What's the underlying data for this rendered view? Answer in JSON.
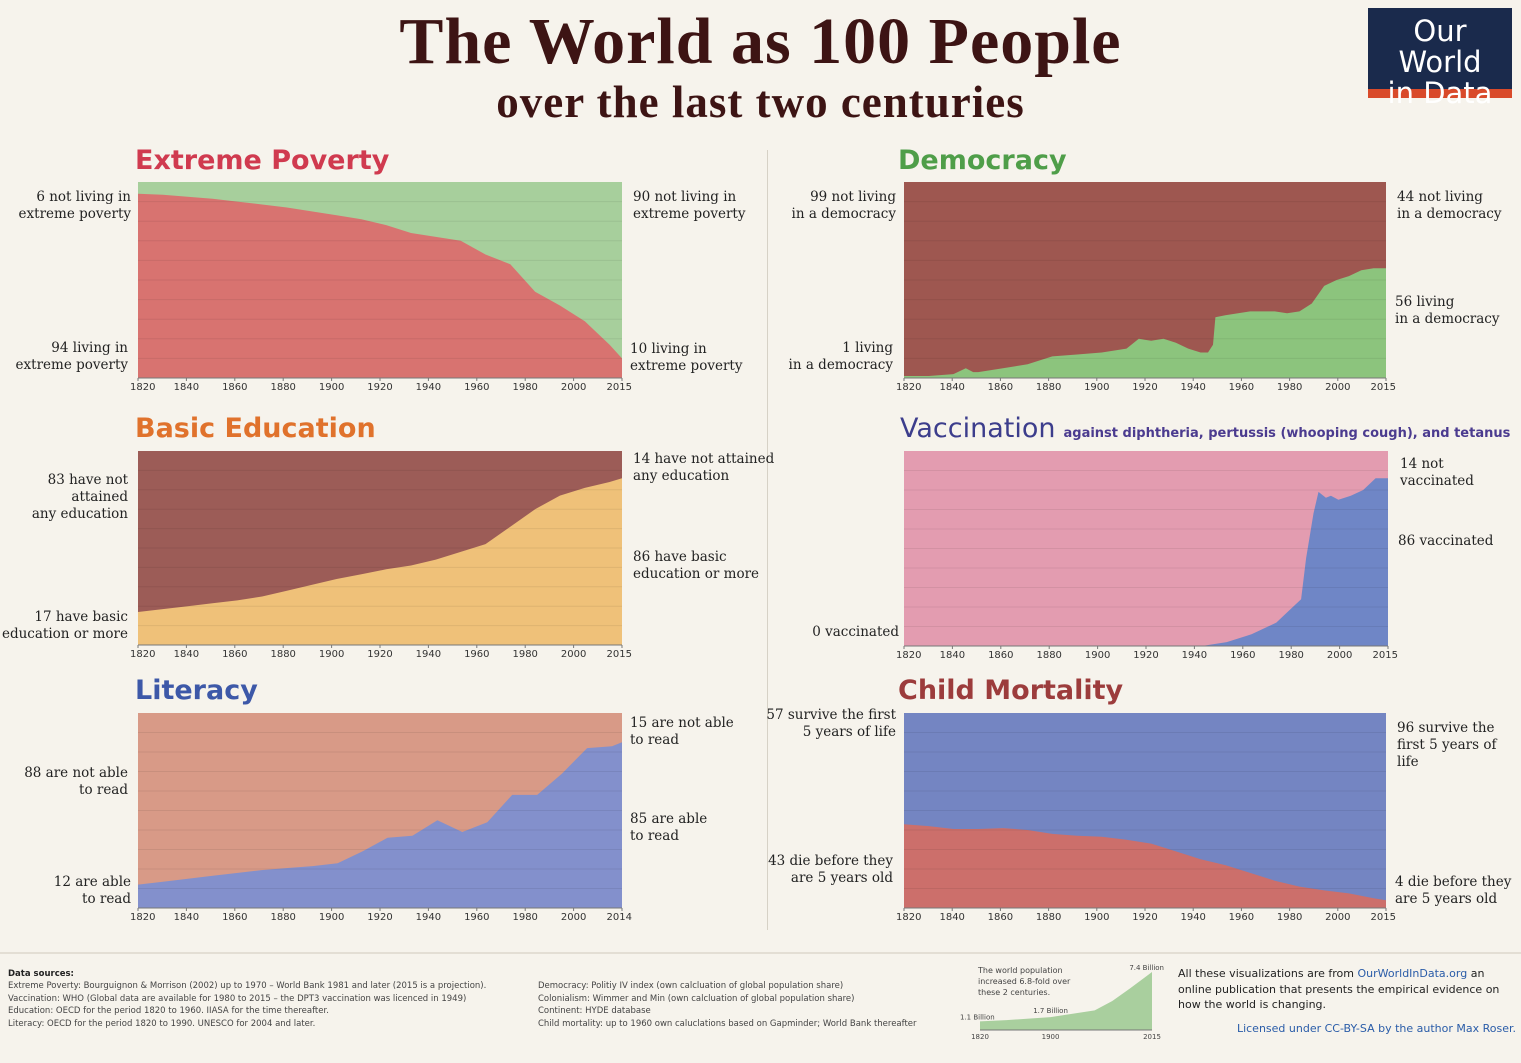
{
  "header": {
    "title": "The World as 100 People",
    "subtitle": "over the last two centuries",
    "logo_line1": "Our World",
    "logo_line2": "in Data"
  },
  "colors": {
    "poverty_title": "#d03a4f",
    "poverty_red": "#d87370",
    "poverty_green": "#a7cf9c",
    "democracy_title": "#4f9e49",
    "democracy_brown": "#9e5750",
    "democracy_green": "#8cc47d",
    "education_title": "#e0722c",
    "education_brown": "#9c5c57",
    "education_yellow": "#efc179",
    "vaccination_title": "#3c3d8c",
    "vaccination_pink": "#e39cb0",
    "vaccination_blue": "#6f86c6",
    "literacy_title": "#3d58a8",
    "literacy_salmon": "#d89a87",
    "literacy_blue": "#8390cc",
    "mortality_title": "#9c3c3c",
    "mortality_blue": "#7485c2",
    "mortality_red": "#cc6f6b"
  },
  "chart_data": [
    {
      "id": "poverty",
      "type": "area",
      "title": "Extreme Poverty",
      "stacked": true,
      "ylim": [
        0,
        100
      ],
      "x_ticks": [
        "1820",
        "1840",
        "1860",
        "1880",
        "1900",
        "1920",
        "1940",
        "1960",
        "1980",
        "2000",
        "2015"
      ],
      "x": [
        1820,
        1830,
        1840,
        1850,
        1860,
        1870,
        1880,
        1890,
        1900,
        1910,
        1920,
        1930,
        1940,
        1950,
        1960,
        1970,
        1980,
        1990,
        2000,
        2010,
        2015
      ],
      "series": [
        {
          "name": "living in extreme poverty",
          "values": [
            94,
            93.5,
            92.5,
            91.5,
            90,
            88.5,
            87,
            85,
            83,
            81,
            78,
            74,
            72,
            70,
            63,
            58,
            44,
            37,
            29,
            17,
            10
          ]
        },
        {
          "name": "not living in extreme poverty",
          "values": [
            6,
            6.5,
            7.5,
            8.5,
            10,
            11.5,
            13,
            15,
            17,
            19,
            22,
            26,
            28,
            30,
            37,
            42,
            56,
            63,
            71,
            83,
            90
          ]
        }
      ],
      "labels": {
        "top_left": "6 not living in\nextreme poverty",
        "bottom_left": "94 living in\nextreme poverty",
        "top_right": "90 not living in\nextreme poverty",
        "bottom_right": "10 living in\nextreme poverty"
      }
    },
    {
      "id": "democracy",
      "type": "area",
      "title": "Democracy",
      "stacked": true,
      "ylim": [
        0,
        100
      ],
      "x_ticks": [
        "1820",
        "1840",
        "1860",
        "1880",
        "1900",
        "1920",
        "1940",
        "1960",
        "1980",
        "2000",
        "2015"
      ],
      "x": [
        1820,
        1830,
        1840,
        1845,
        1848,
        1850,
        1860,
        1870,
        1880,
        1890,
        1900,
        1910,
        1915,
        1920,
        1925,
        1930,
        1935,
        1940,
        1943,
        1945,
        1946,
        1950,
        1960,
        1970,
        1975,
        1980,
        1985,
        1990,
        1995,
        2000,
        2005,
        2010,
        2015
      ],
      "series": [
        {
          "name": "living in a democracy",
          "values": [
            1,
            1,
            2,
            5,
            3,
            3,
            5,
            7,
            11,
            12,
            13,
            15,
            20,
            19,
            20,
            18,
            15,
            13,
            13,
            17,
            31,
            32,
            34,
            34,
            33,
            34,
            38,
            47,
            50,
            52,
            55,
            56,
            56
          ]
        },
        {
          "name": "not living in a democracy",
          "values": [
            99,
            99,
            98,
            95,
            97,
            97,
            95,
            93,
            89,
            88,
            87,
            85,
            80,
            81,
            80,
            82,
            85,
            87,
            87,
            83,
            69,
            68,
            66,
            66,
            67,
            66,
            62,
            53,
            50,
            48,
            45,
            44,
            44
          ]
        }
      ],
      "labels": {
        "top_left": "99 not living\nin a democracy",
        "bottom_left": "1 living\nin a democracy",
        "top_right": "44 not living\nin a democracy",
        "bottom_right": "56 living\nin a democracy"
      }
    },
    {
      "id": "education",
      "type": "area",
      "title": "Basic Education",
      "stacked": true,
      "ylim": [
        0,
        100
      ],
      "x_ticks": [
        "1820",
        "1840",
        "1860",
        "1880",
        "1900",
        "1920",
        "1940",
        "1960",
        "1980",
        "2000",
        "2015"
      ],
      "x": [
        1820,
        1830,
        1840,
        1850,
        1860,
        1870,
        1880,
        1890,
        1900,
        1910,
        1920,
        1930,
        1940,
        1950,
        1960,
        1970,
        1980,
        1990,
        2000,
        2010,
        2015
      ],
      "series": [
        {
          "name": "have basic education or more",
          "values": [
            17,
            18.5,
            20,
            21.5,
            23,
            25,
            28,
            31,
            34,
            36.5,
            39,
            41,
            44,
            48,
            52,
            61,
            70,
            77,
            81,
            84,
            86
          ]
        },
        {
          "name": "have not attained any education",
          "values": [
            83,
            81.5,
            80,
            78.5,
            77,
            75,
            72,
            69,
            66,
            63.5,
            61,
            59,
            56,
            52,
            48,
            39,
            30,
            23,
            19,
            16,
            14
          ]
        }
      ],
      "labels": {
        "top_left": "83 have not attained\nany education",
        "bottom_left": "17 have basic\neducation or more",
        "top_right": "14 have not attained\nany education",
        "bottom_right": "86 have basic\neducation or more"
      }
    },
    {
      "id": "vaccination",
      "type": "area",
      "title": "Vaccination",
      "title_note": "against diphtheria, pertussis (whooping cough), and tetanus",
      "stacked": true,
      "ylim": [
        0,
        100
      ],
      "x_ticks": [
        "1820",
        "1840",
        "1860",
        "1880",
        "1900",
        "1920",
        "1940",
        "1960",
        "1980",
        "2000",
        "2015"
      ],
      "x": [
        1820,
        1940,
        1950,
        1960,
        1970,
        1975,
        1980,
        1982,
        1985,
        1987,
        1990,
        1992,
        1995,
        2000,
        2005,
        2010,
        2015
      ],
      "series": [
        {
          "name": "vaccinated",
          "values": [
            0,
            0,
            2,
            6,
            12,
            18,
            24,
            45,
            68,
            79,
            76,
            77,
            75,
            77,
            80,
            86,
            86
          ]
        },
        {
          "name": "not vaccinated",
          "values": [
            100,
            100,
            98,
            94,
            88,
            82,
            76,
            55,
            32,
            21,
            24,
            23,
            25,
            23,
            20,
            14,
            14
          ]
        }
      ],
      "labels": {
        "top_right": "14 not vaccinated",
        "bottom_left": "0 vaccinated",
        "bottom_right": "86 vaccinated"
      }
    },
    {
      "id": "literacy",
      "type": "area",
      "title": "Literacy",
      "stacked": true,
      "ylim": [
        0,
        100
      ],
      "x_ticks": [
        "1820",
        "1840",
        "1860",
        "1880",
        "1900",
        "1920",
        "1940",
        "1960",
        "1980",
        "2000",
        "2014"
      ],
      "x": [
        1820,
        1830,
        1840,
        1850,
        1860,
        1870,
        1880,
        1890,
        1900,
        1910,
        1920,
        1930,
        1940,
        1950,
        1960,
        1970,
        1980,
        1990,
        2000,
        2010,
        2014
      ],
      "series": [
        {
          "name": "are able to read",
          "values": [
            12,
            13.5,
            15,
            16.5,
            18,
            19.5,
            20.5,
            21.5,
            23,
            29,
            36,
            37,
            45,
            39,
            44,
            58,
            58,
            69,
            82,
            83,
            85
          ]
        },
        {
          "name": "are not able to read",
          "values": [
            88,
            86.5,
            85,
            83.5,
            82,
            80.5,
            79.5,
            78.5,
            77,
            71,
            64,
            63,
            55,
            61,
            56,
            42,
            42,
            31,
            18,
            17,
            15
          ]
        }
      ],
      "labels": {
        "top_left": "88 are not able\nto read",
        "bottom_left": "12 are able\nto read",
        "top_right": "15 are not able\nto read",
        "bottom_right": "85 are able\nto read"
      }
    },
    {
      "id": "mortality",
      "type": "area",
      "title": "Child Mortality",
      "stacked": true,
      "ylim": [
        0,
        100
      ],
      "x_ticks": [
        "1820",
        "1840",
        "1860",
        "1880",
        "1900",
        "1920",
        "1940",
        "1960",
        "1980",
        "2000",
        "2015"
      ],
      "x": [
        1820,
        1830,
        1840,
        1850,
        1860,
        1870,
        1880,
        1890,
        1900,
        1910,
        1920,
        1930,
        1940,
        1950,
        1960,
        1970,
        1980,
        1990,
        2000,
        2010,
        2015
      ],
      "series": [
        {
          "name": "die before they are 5 years old",
          "values": [
            43,
            42,
            40.5,
            40.5,
            41,
            40,
            38,
            37,
            36.5,
            35,
            33,
            29,
            25,
            22,
            18,
            14,
            11,
            9,
            7.5,
            5,
            4
          ]
        },
        {
          "name": "survive the first 5 years of life",
          "values": [
            57,
            58,
            59.5,
            59.5,
            59,
            60,
            62,
            63,
            63.5,
            65,
            67,
            71,
            75,
            78,
            82,
            86,
            89,
            91,
            92.5,
            95,
            96
          ]
        }
      ],
      "labels": {
        "top_left": "57 survive the first\n5 years of life",
        "bottom_left": "43 die before they\nare 5 years old",
        "top_right": "96 survive the\nfirst 5 years of life",
        "bottom_right": "4 die before they\nare 5 years old"
      }
    },
    {
      "id": "population",
      "type": "area",
      "x": [
        1820,
        1850,
        1900,
        1950,
        1970,
        1990,
        2015
      ],
      "values": [
        1.1,
        1.26,
        1.65,
        2.5,
        3.7,
        5.3,
        7.4
      ],
      "labels": {
        "start": "1.1 Billion",
        "mid": "1.7 Billion",
        "end": "7.4 Billion",
        "note": "The world population increased 6.8-fold over these 2 centuries.",
        "x_start": "1820",
        "x_mid": "1900",
        "x_end": "2015"
      }
    }
  ],
  "footer": {
    "sources_heading": "Data sources:",
    "sources_left": [
      "Extreme Poverty: Bourguignon & Morrison (2002) up to 1970 – World Bank 1981 and later (2015 is a projection).",
      "Vaccination: WHO (Global data are available for 1980 to 2015 – the DPT3 vaccination was licenced in 1949)",
      "Education: OECD for the period 1820 to 1960. IIASA for the time thereafter.",
      "Literacy: OECD for the period 1820 to 1990. UNESCO for 2004 and later."
    ],
    "sources_right": [
      "Democracy: Politiy IV index (own calcluation of global population share)",
      "Colonialism: Wimmer and Min (own calcluation of global population share)",
      "Continent: HYDE database",
      "Child mortality: up to 1960 own caluclations based on Gapminder; World Bank thereafter"
    ],
    "about_prefix": "All these visualizations are from ",
    "about_link": "OurWorldInData.org",
    "about_suffix": " an online publication that presents the empirical evidence on how the world is changing.",
    "license": "Licensed under CC-BY-SA by the author Max Roser."
  }
}
